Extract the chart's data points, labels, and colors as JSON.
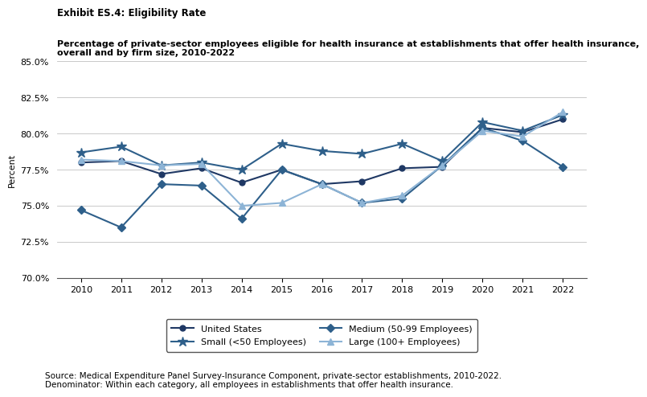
{
  "title_line1": "Exhibit ES.4: Eligibility Rate",
  "title_line2": "Percentage of private-sector employees eligible for health insurance at establishments that offer health insurance,\noverall and by firm size, 2010-2022",
  "ylabel": "Percent",
  "years": [
    2010,
    2011,
    2012,
    2013,
    2014,
    2015,
    2016,
    2017,
    2018,
    2019,
    2020,
    2021,
    2022
  ],
  "series": {
    "United States": {
      "values": [
        78.0,
        78.1,
        77.2,
        77.6,
        76.6,
        77.5,
        76.5,
        76.7,
        77.6,
        77.7,
        80.4,
        80.1,
        81.0
      ],
      "color": "#1f3864",
      "marker": "o",
      "linewidth": 1.5,
      "markersize": 5
    },
    "Small (<50 Employees)": {
      "values": [
        78.7,
        79.1,
        77.8,
        78.0,
        77.5,
        79.3,
        78.8,
        78.6,
        79.3,
        78.1,
        80.8,
        80.2,
        81.3
      ],
      "color": "#2e5f8a",
      "marker": "*",
      "linewidth": 1.5,
      "markersize": 9
    },
    "Medium (50-99 Employees)": {
      "values": [
        74.7,
        73.5,
        76.5,
        76.4,
        74.1,
        77.5,
        76.5,
        75.2,
        75.5,
        77.8,
        80.4,
        79.5,
        77.7
      ],
      "color": "#2e5f8a",
      "marker": "D",
      "linewidth": 1.5,
      "markersize": 5
    },
    "Large (100+ Employees)": {
      "values": [
        78.2,
        78.1,
        77.8,
        77.9,
        75.0,
        75.2,
        76.5,
        75.2,
        75.7,
        77.8,
        80.2,
        79.8,
        81.5
      ],
      "color": "#8db4d6",
      "marker": "^",
      "linewidth": 1.5,
      "markersize": 6
    }
  },
  "ylim": [
    70.0,
    85.0
  ],
  "yticks": [
    70.0,
    72.5,
    75.0,
    77.5,
    80.0,
    82.5,
    85.0
  ],
  "background_color": "#ffffff",
  "grid_color": "#c0c0c0"
}
